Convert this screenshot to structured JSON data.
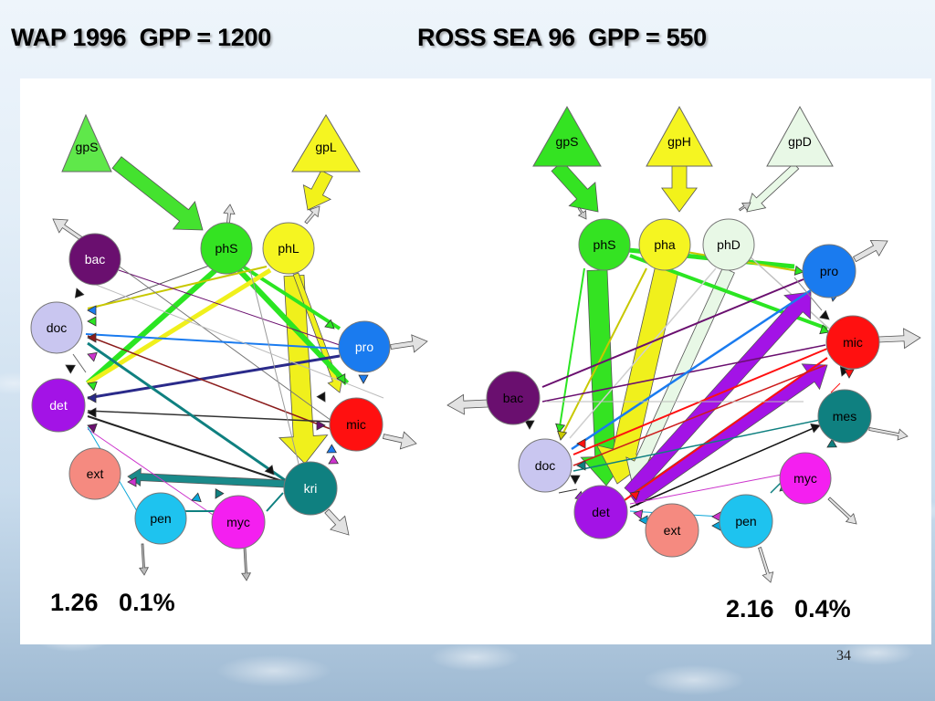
{
  "slide": {
    "title_left": "WAP 1996  GPP = 1200",
    "title_right": "ROSS SEA 96  GPP = 550",
    "stat_left": "1.26   0.1%",
    "stat_right": "2.16   0.4%",
    "slide_number": "34"
  },
  "diagrams": [
    {
      "id": "wap",
      "nodes": [
        {
          "id": "bac",
          "label": "bac",
          "color": "#6a0f6f",
          "text": "#ffffff"
        },
        {
          "id": "doc",
          "label": "doc",
          "color": "#c9c6f0",
          "text": "#000000"
        },
        {
          "id": "det",
          "label": "det",
          "color": "#a313e6",
          "text": "#ffffff"
        },
        {
          "id": "ext",
          "label": "ext",
          "color": "#f58a80",
          "text": "#000000"
        },
        {
          "id": "pen",
          "label": "pen",
          "color": "#1ec3ef",
          "text": "#000000"
        },
        {
          "id": "myc",
          "label": "myc",
          "color": "#f41ff0",
          "text": "#000000"
        },
        {
          "id": "kri",
          "label": "kri",
          "color": "#0f8080",
          "text": "#ffffff"
        },
        {
          "id": "mic",
          "label": "mic",
          "color": "#ff1010",
          "text": "#000000"
        },
        {
          "id": "pro",
          "label": "pro",
          "color": "#1a7bef",
          "text": "#ffffff"
        },
        {
          "id": "phS",
          "label": "phS",
          "color": "#34e322",
          "text": "#000000"
        },
        {
          "id": "phL",
          "label": "phL",
          "color": "#f5f521",
          "text": "#000000"
        },
        {
          "id": "gpS",
          "label": "gpS",
          "color": "#5fe84a",
          "text": "#000000"
        },
        {
          "id": "gpL",
          "label": "gpL",
          "color": "#f5f521",
          "text": "#000000"
        }
      ]
    },
    {
      "id": "ross",
      "nodes": [
        {
          "id": "phS",
          "label": "phS",
          "color": "#34e322",
          "text": "#000000"
        },
        {
          "id": "pha",
          "label": "pha",
          "color": "#f5f521",
          "text": "#000000"
        },
        {
          "id": "phD",
          "label": "phD",
          "color": "#e8f8e6",
          "text": "#000000"
        },
        {
          "id": "pro",
          "label": "pro",
          "color": "#1a7bef",
          "text": "#000000"
        },
        {
          "id": "mic",
          "label": "mic",
          "color": "#ff1010",
          "text": "#000000"
        },
        {
          "id": "mes",
          "label": "mes",
          "color": "#0f8080",
          "text": "#000000"
        },
        {
          "id": "myc",
          "label": "myc",
          "color": "#f41ff0",
          "text": "#000000"
        },
        {
          "id": "pen",
          "label": "pen",
          "color": "#1ec3ef",
          "text": "#000000"
        },
        {
          "id": "ext",
          "label": "ext",
          "color": "#f58a80",
          "text": "#000000"
        },
        {
          "id": "det",
          "label": "det",
          "color": "#a313e6",
          "text": "#000000"
        },
        {
          "id": "doc",
          "label": "doc",
          "color": "#c9c6f0",
          "text": "#000000"
        },
        {
          "id": "bac",
          "label": "bac",
          "color": "#6a0f6f",
          "text": "#000000"
        },
        {
          "id": "gpS",
          "label": "gpS",
          "color": "#34e322",
          "text": "#000000"
        },
        {
          "id": "gpH",
          "label": "gpH",
          "color": "#f5f521",
          "text": "#000000"
        },
        {
          "id": "gpD",
          "label": "gpD",
          "color": "#e8f8e6",
          "text": "#000000"
        }
      ]
    }
  ]
}
